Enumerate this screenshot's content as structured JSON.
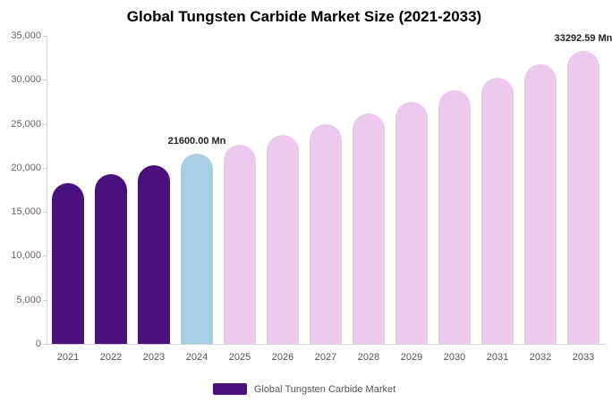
{
  "title": "Global Tungsten Carbide Market Size (2021-2033)",
  "chart_data": {
    "type": "bar",
    "title": "Global Tungsten Carbide Market Size (2021-2033)",
    "categories": [
      "2021",
      "2022",
      "2023",
      "2024",
      "2025",
      "2026",
      "2027",
      "2028",
      "2029",
      "2030",
      "2031",
      "2032",
      "2033"
    ],
    "values": [
      18300,
      19300,
      20300,
      21600,
      22665,
      23782,
      24955,
      26185,
      27476,
      28830,
      30251,
      31743,
      33292.59
    ],
    "unit": "Mn",
    "ylim": [
      0,
      35000
    ],
    "y_tick_labels": [
      "0",
      "5,000",
      "10,000",
      "15,000",
      "20,000",
      "25,000",
      "30,000",
      "35,000"
    ],
    "y_tick_values": [
      0,
      5000,
      10000,
      15000,
      20000,
      25000,
      30000,
      35000
    ],
    "grid": false,
    "bar_colors": [
      "#4A107E",
      "#4A107E",
      "#4A107E",
      "#A7CEE2",
      "#EBC8EC",
      "#EBC8EC",
      "#EBC8EC",
      "#EBC8EC",
      "#EBC8EC",
      "#EBC8EC",
      "#EBC8EC",
      "#EBC8EC",
      "#EBC8EC"
    ],
    "annotations": [
      {
        "index": 3,
        "text": "21600.00 Mn"
      },
      {
        "index": 12,
        "text": "33292.59 Mn"
      }
    ],
    "legend_position": "bottom-center",
    "legend": [
      {
        "label": "Global Tungsten Carbide Market",
        "color": "#4A107E"
      }
    ]
  }
}
